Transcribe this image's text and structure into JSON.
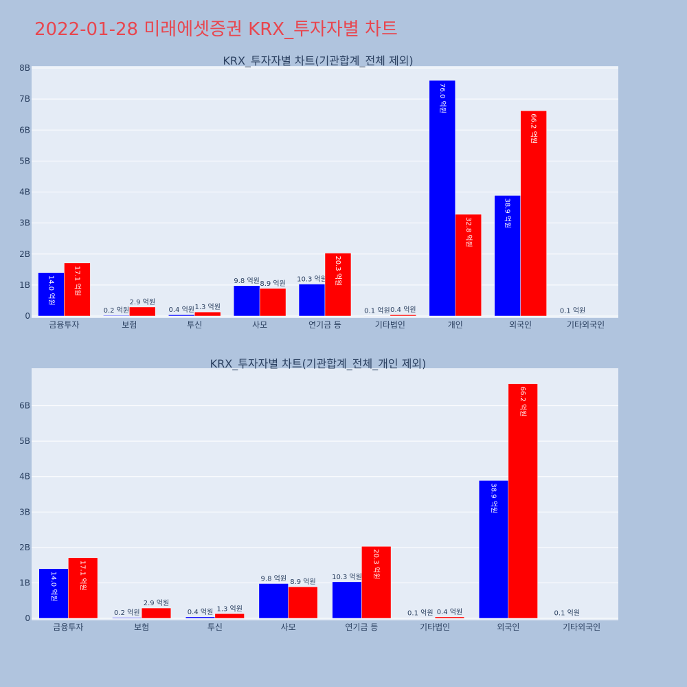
{
  "page_title": "2022-01-28 미래에셋증권 KRX_투자자별 차트",
  "colors": {
    "background": "#b0c4de",
    "plot_background": "#e5ecf6",
    "title": "#e8464e",
    "series_buy": "#0000ff",
    "series_sell": "#ff0000",
    "grid": "#ffffff",
    "text": "#2a3f5f"
  },
  "chart_data": [
    {
      "type": "bar",
      "title": "KRX_투자자별 차트(기관합계_전체 제외)",
      "categories": [
        "금융투자",
        "보험",
        "투신",
        "사모",
        "연기금 등",
        "기타법인",
        "개인",
        "외국인",
        "기타외국인"
      ],
      "ylim": [
        0,
        8000000000
      ],
      "yticks": [
        0,
        1000000000,
        2000000000,
        3000000000,
        4000000000,
        5000000000,
        6000000000,
        7000000000,
        8000000000
      ],
      "yticklabels": [
        "0",
        "1B",
        "2B",
        "3B",
        "4B",
        "5B",
        "6B",
        "7B",
        "8B"
      ],
      "grid": true,
      "series": [
        {
          "color": "#0000ff",
          "values": [
            1400000000,
            20000000,
            40000000,
            980000000,
            1030000000,
            10000000,
            7600000000,
            3890000000,
            10000000
          ],
          "labels": [
            "14.0 억원",
            "0.2 억원",
            "0.4 억원",
            "9.8 억원",
            "10.3 억원",
            "0.1 억원",
            "76.0 억원",
            "38.9 억원",
            "0.1 억원"
          ]
        },
        {
          "color": "#ff0000",
          "values": [
            1710000000,
            290000000,
            130000000,
            890000000,
            2030000000,
            40000000,
            3280000000,
            6620000000,
            0
          ],
          "labels": [
            "17.1 억원",
            "2.9 억원",
            "1.3 억원",
            "8.9 억원",
            "20.3 억원",
            "0.4 억원",
            "32.8 억원",
            "66.2 억원",
            ""
          ]
        }
      ]
    },
    {
      "type": "bar",
      "title": "KRX_투자자별 차트(기관합계_전체_개인 제외)",
      "categories": [
        "금융투자",
        "보험",
        "투신",
        "사모",
        "연기금 등",
        "기타법인",
        "외국인",
        "기타외국인"
      ],
      "ylim": [
        0,
        7000000000
      ],
      "yticks": [
        0,
        1000000000,
        2000000000,
        3000000000,
        4000000000,
        5000000000,
        6000000000
      ],
      "yticklabels": [
        "0",
        "1B",
        "2B",
        "3B",
        "4B",
        "5B",
        "6B"
      ],
      "grid": true,
      "series": [
        {
          "color": "#0000ff",
          "values": [
            1400000000,
            20000000,
            40000000,
            980000000,
            1030000000,
            10000000,
            3890000000,
            10000000
          ],
          "labels": [
            "14.0 억원",
            "0.2 억원",
            "0.4 억원",
            "9.8 억원",
            "10.3 억원",
            "0.1 억원",
            "38.9 억원",
            "0.1 억원"
          ]
        },
        {
          "color": "#ff0000",
          "values": [
            1710000000,
            290000000,
            130000000,
            890000000,
            2030000000,
            40000000,
            6620000000,
            0
          ],
          "labels": [
            "17.1 억원",
            "2.9 억원",
            "1.3 억원",
            "8.9 억원",
            "20.3 억원",
            "0.4 억원",
            "66.2 억원",
            ""
          ]
        }
      ]
    }
  ]
}
